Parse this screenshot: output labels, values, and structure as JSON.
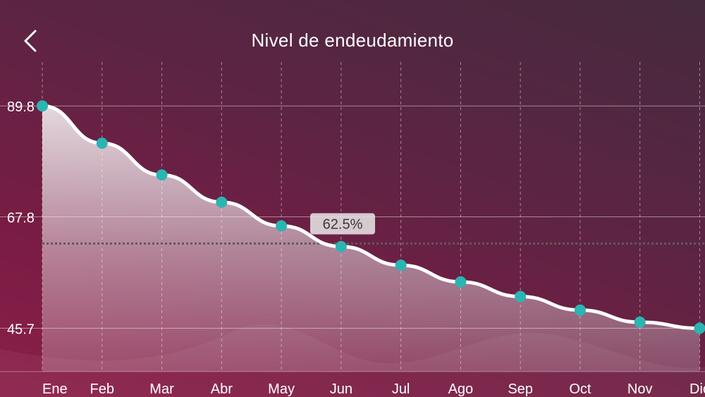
{
  "header": {
    "title": "Nivel de endeudamiento",
    "back_icon": "chevron-left-icon"
  },
  "colors": {
    "background_top": "#452a3d",
    "background_bottom": "#8c1f49",
    "line": "#ffffff",
    "marker": "#2bb5b2",
    "reference_line": "#5b5b5b",
    "label_box": "#e6e1e4"
  },
  "chart_data": {
    "type": "area",
    "title": "Nivel de endeudamiento",
    "xlabel": "",
    "ylabel": "",
    "categories": [
      "Ene",
      "Feb",
      "Mar",
      "Abr",
      "May",
      "Jun",
      "Jul",
      "Ago",
      "Sep",
      "Oct",
      "Nov",
      "Dic"
    ],
    "values": [
      89.8,
      82.4,
      76.1,
      70.7,
      66.0,
      61.9,
      58.2,
      54.9,
      52.0,
      49.3,
      46.9,
      45.7
    ],
    "ylim": [
      37.1,
      98.5
    ],
    "yticks": [
      45.7,
      67.8,
      89.8
    ],
    "ytick_labels": [
      "45.7",
      "67.8",
      "89.8"
    ],
    "grid": true,
    "vertical_grid": "dashed",
    "reference_line": {
      "value": 62.5,
      "label": "62.5%",
      "style": "dotted"
    },
    "markers": true,
    "legend": "none"
  }
}
